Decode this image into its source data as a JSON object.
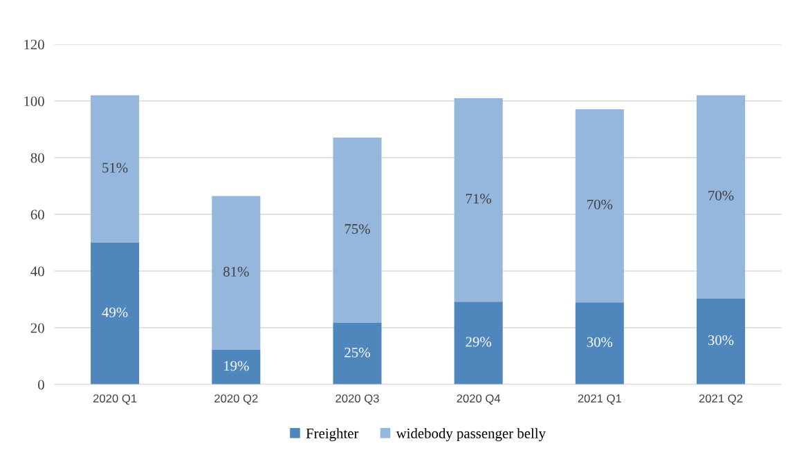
{
  "chart_data": {
    "type": "bar",
    "stacked": true,
    "categories": [
      "2020 Q1",
      "2020 Q2",
      "2020 Q3",
      "2020 Q4",
      "2021 Q1",
      "2021 Q2"
    ],
    "series": [
      {
        "name": "Freighter",
        "color": "#4f87bd",
        "values": [
          50,
          12.2,
          21.7,
          29.2,
          29,
          30.4
        ]
      },
      {
        "name": "widebody passenger belly",
        "color": "#95b7de",
        "values": [
          52,
          54.3,
          65.4,
          71.8,
          68.1,
          71.6
        ]
      }
    ],
    "annotations": [
      "49%",
      "19%",
      "25%",
      "29%",
      "30%",
      "30%",
      "51%",
      "81%",
      "75%",
      "71%",
      "70%",
      "70%"
    ],
    "ylim": [
      0,
      120
    ],
    "yticks": [
      0,
      20,
      40,
      60,
      80,
      100,
      120
    ],
    "grid": "y",
    "legend": "bottom"
  }
}
